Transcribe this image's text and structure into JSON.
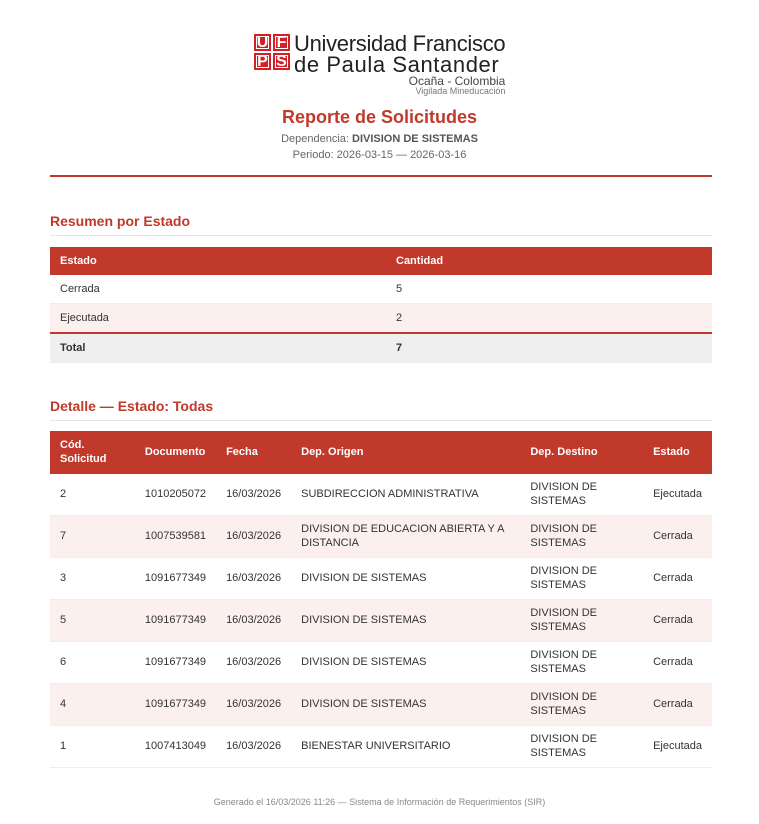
{
  "logo": {
    "mark": [
      "U",
      "F",
      "P",
      "S"
    ],
    "line1": "Universidad Francisco",
    "line2": "de Paula Santander",
    "line3": "Ocaña - Colombia",
    "line4": "Vigilada Mineducación"
  },
  "header": {
    "title": "Reporte de Solicitudes",
    "dependencia_label": "Dependencia:",
    "dependencia": "DIVISION DE SISTEMAS",
    "periodo": "Periodo: 2026-03-15 — 2026-03-16"
  },
  "summary": {
    "heading": "Resumen por Estado",
    "columns": [
      "Estado",
      "Cantidad"
    ],
    "rows": [
      [
        "Cerrada",
        "5"
      ],
      [
        "Ejecutada",
        "2"
      ]
    ],
    "total": [
      "Total",
      "7"
    ]
  },
  "detail": {
    "heading": "Detalle — Estado: Todas",
    "columns": [
      "Cód. Solicitud",
      "Documento",
      "Fecha",
      "Dep. Origen",
      "Dep. Destino",
      "Estado"
    ],
    "rows": [
      [
        "2",
        "1010205072",
        "16/03/2026",
        "SUBDIRECCION ADMINISTRATIVA",
        "DIVISION DE SISTEMAS",
        "Ejecutada"
      ],
      [
        "7",
        "1007539581",
        "16/03/2026",
        "DIVISION DE EDUCACION ABIERTA Y A DISTANCIA",
        "DIVISION DE SISTEMAS",
        "Cerrada"
      ],
      [
        "3",
        "1091677349",
        "16/03/2026",
        "DIVISION DE SISTEMAS",
        "DIVISION DE SISTEMAS",
        "Cerrada"
      ],
      [
        "5",
        "1091677349",
        "16/03/2026",
        "DIVISION DE SISTEMAS",
        "DIVISION DE SISTEMAS",
        "Cerrada"
      ],
      [
        "6",
        "1091677349",
        "16/03/2026",
        "DIVISION DE SISTEMAS",
        "DIVISION DE SISTEMAS",
        "Cerrada"
      ],
      [
        "4",
        "1091677349",
        "16/03/2026",
        "DIVISION DE SISTEMAS",
        "DIVISION DE SISTEMAS",
        "Cerrada"
      ],
      [
        "1",
        "1007413049",
        "16/03/2026",
        "BIENESTAR UNIVERSITARIO",
        "DIVISION DE SISTEMAS",
        "Ejecutada"
      ]
    ]
  },
  "footer": "Generado el 16/03/2026 11:26 — Sistema de Información de Requerimientos (SIR)",
  "colors": {
    "accent": "#c0392b",
    "alt_row": "#fcf0ef"
  }
}
